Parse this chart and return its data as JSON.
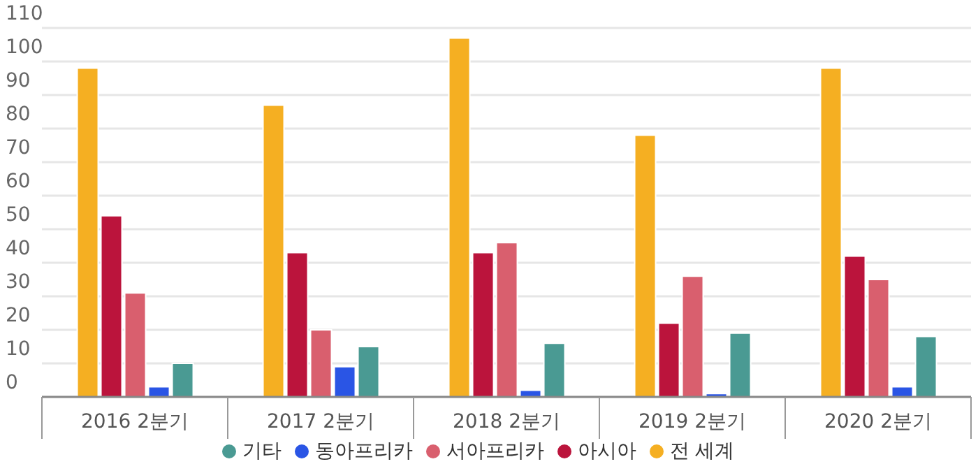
{
  "chart_data": {
    "type": "bar",
    "categories": [
      "2016 2분기",
      "2017 2분기",
      "2018 2분기",
      "2019 2분기",
      "2020 2분기"
    ],
    "series": [
      {
        "name": "전 세계",
        "color": "#f5af22",
        "values": [
          98,
          87,
          107,
          78,
          98
        ]
      },
      {
        "name": "아시아",
        "color": "#bb143c",
        "values": [
          54,
          43,
          43,
          22,
          42
        ]
      },
      {
        "name": "서아프리카",
        "color": "#d95f6e",
        "values": [
          31,
          20,
          46,
          36,
          35
        ]
      },
      {
        "name": "동아프리카",
        "color": "#2a55e5",
        "values": [
          3,
          9,
          2,
          1,
          3
        ]
      },
      {
        "name": "기타",
        "color": "#4a9a93",
        "values": [
          10,
          15,
          16,
          19,
          18
        ]
      }
    ],
    "ylim": [
      0,
      110
    ],
    "yticks": [
      0,
      10,
      20,
      30,
      40,
      50,
      60,
      70,
      80,
      90,
      100,
      110
    ],
    "grid": "y",
    "legend": "bottom"
  }
}
